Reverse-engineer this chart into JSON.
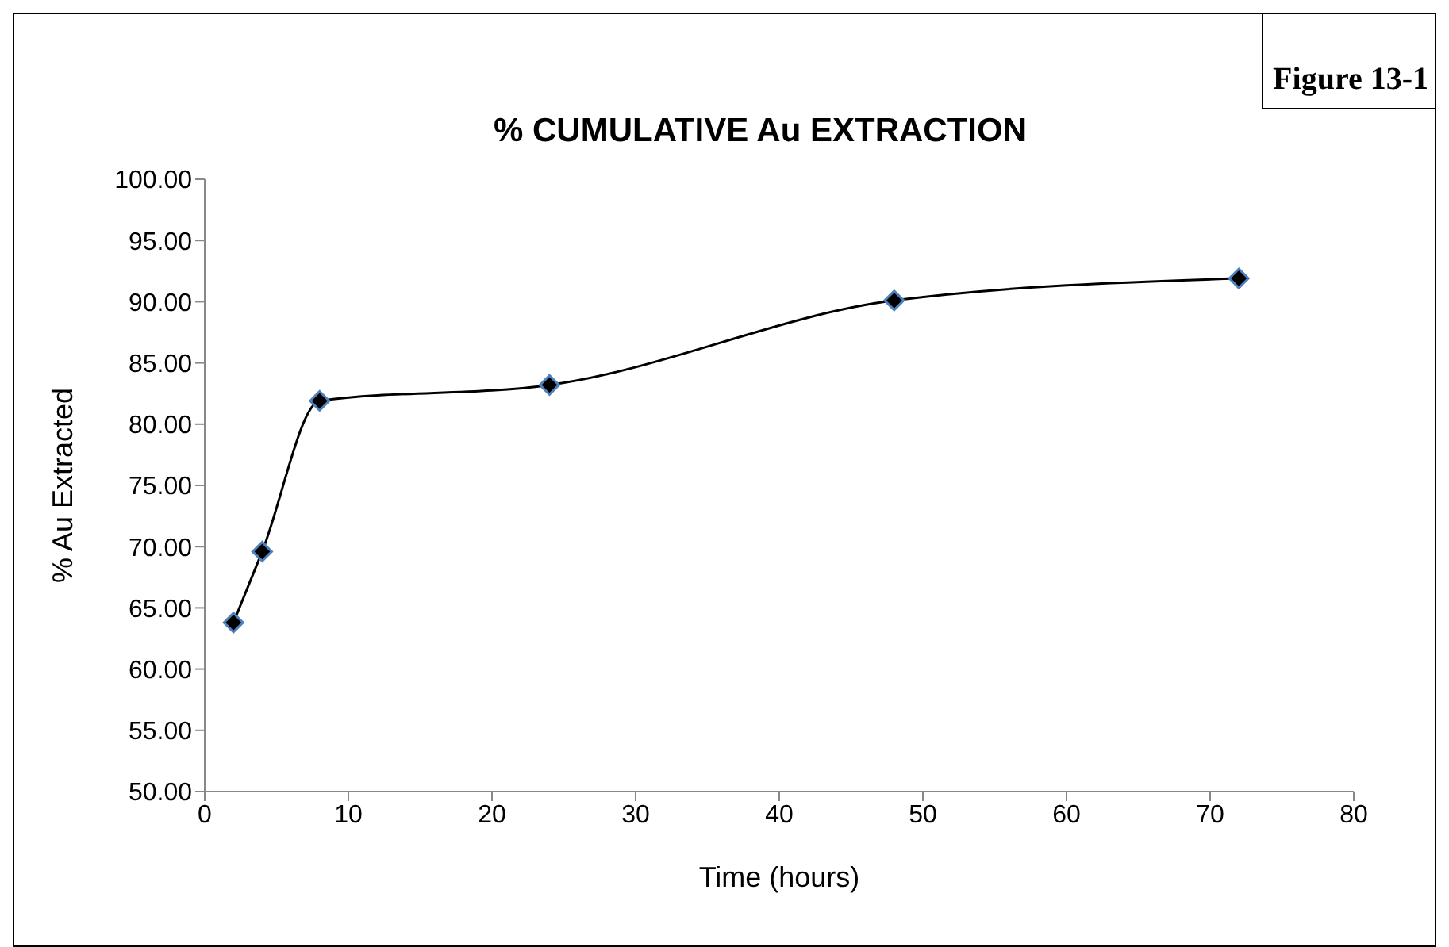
{
  "chart_data": {
    "type": "line",
    "title": "% CUMULATIVE Au EXTRACTION",
    "xlabel": "Time (hours)",
    "ylabel": "% Au Extracted",
    "annotations": [
      "Figure 13-1"
    ],
    "x": [
      2,
      4,
      8,
      24,
      48,
      72
    ],
    "series": [
      {
        "color": "#000000",
        "values": [
          63.8,
          69.6,
          81.9,
          83.2,
          90.1,
          91.9
        ]
      }
    ],
    "xlim": [
      0,
      80
    ],
    "xticks": [
      0,
      10,
      20,
      30,
      40,
      50,
      60,
      70,
      80
    ],
    "ylim": [
      50,
      100
    ],
    "yticks": [
      {
        "value": 50,
        "label": "50.00"
      },
      {
        "value": 55,
        "label": "55.00"
      },
      {
        "value": 60,
        "label": "60.00"
      },
      {
        "value": 65,
        "label": "65.00"
      },
      {
        "value": 70,
        "label": "70.00"
      },
      {
        "value": 75,
        "label": "75.00"
      },
      {
        "value": 80,
        "label": "80.00"
      },
      {
        "value": 85,
        "label": "85.00"
      },
      {
        "value": 90,
        "label": "90.00"
      },
      {
        "value": 95,
        "label": "95.00"
      },
      {
        "value": 100,
        "label": "100.00"
      }
    ],
    "grid": false,
    "legend": false,
    "marker": "diamond",
    "line_style": "solid"
  }
}
